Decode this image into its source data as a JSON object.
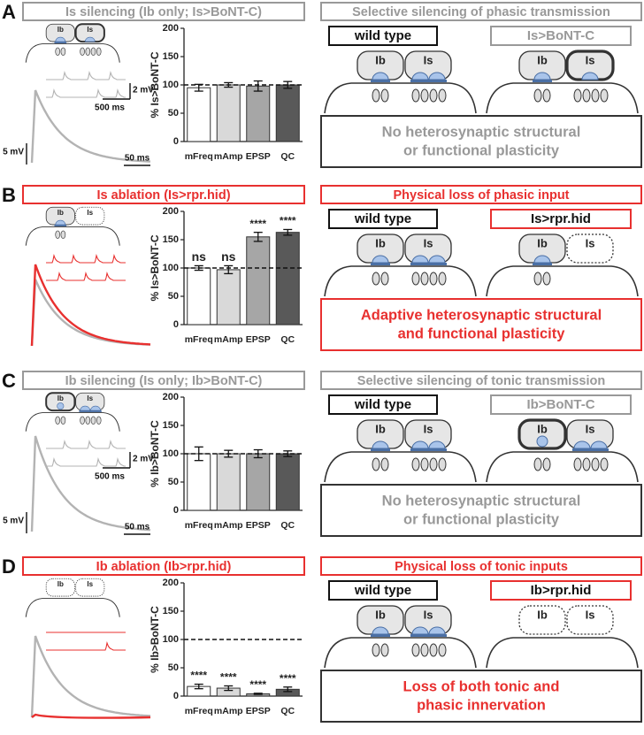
{
  "bouton_labels": [
    "Ib",
    "Is"
  ],
  "panels": [
    {
      "letter": "A",
      "title": "Is silencing (Ib only; Is>BoNT-C)",
      "accent": "#999999",
      "scale_labels": [
        "2 mV",
        "500 ms",
        "5 mV",
        "50 ms"
      ],
      "right_title": "Selective silencing of phasic transmission",
      "wild_type": "wild type",
      "mutant": "Is>BoNT-C",
      "conclusion": [
        "No heterosynaptic structural",
        "or functional plasticity"
      ],
      "conclusion_color": "#999999",
      "conclusion_border": "#333333"
    },
    {
      "letter": "B",
      "title": "Is ablation (Is>rpr.hid)",
      "accent": "#e8302f",
      "right_title": "Physical loss of phasic input",
      "wild_type": "wild type",
      "mutant": "Is>rpr.hid",
      "conclusion": [
        "Adaptive heterosynaptic structural",
        "and functional plasticity"
      ],
      "conclusion_color": "#e8302f",
      "conclusion_border": "#e8302f"
    },
    {
      "letter": "C",
      "title": "Ib silencing (Is only; Ib>BoNT-C)",
      "accent": "#999999",
      "scale_labels": [
        "2 mV",
        "500 ms",
        "5 mV",
        "50 ms"
      ],
      "right_title": "Selective silencing of tonic transmission",
      "wild_type": "wild type",
      "mutant": "Ib>BoNT-C",
      "conclusion": [
        "No heterosynaptic structural",
        "or functional plasticity"
      ],
      "conclusion_color": "#999999",
      "conclusion_border": "#333333"
    },
    {
      "letter": "D",
      "title": "Ib ablation (Ib>rpr.hid)",
      "accent": "#e8302f",
      "right_title": "Physical loss of tonic inputs",
      "wild_type": "wild type",
      "mutant": "Ib>rpr.hid",
      "conclusion": [
        "Loss of both tonic and",
        "phasic innervation"
      ],
      "conclusion_color": "#e8302f",
      "conclusion_border": "#333333"
    }
  ],
  "chart_data": [
    {
      "type": "bar",
      "ylabel": "% Is>BoNT-C",
      "categories": [
        "mFreq",
        "mAmp",
        "EPSP",
        "QC"
      ],
      "values": [
        95,
        100,
        98,
        100
      ],
      "errors": [
        6,
        4,
        9,
        6
      ],
      "colors": [
        "#ffffff",
        "#d9d9d9",
        "#a6a6a6",
        "#595959"
      ],
      "ylim": [
        0,
        200
      ],
      "yticks": [
        0,
        50,
        100,
        150,
        200
      ],
      "reference": 100
    },
    {
      "type": "bar",
      "ylabel": "% Is>BoNT-C",
      "categories": [
        "mFreq",
        "mAmp",
        "EPSP",
        "QC"
      ],
      "values": [
        100,
        97,
        155,
        163
      ],
      "errors": [
        4,
        7,
        8,
        5
      ],
      "annotations": [
        "ns",
        "ns",
        "****",
        "****"
      ],
      "colors": [
        "#ffffff",
        "#d9d9d9",
        "#a6a6a6",
        "#595959"
      ],
      "ylim": [
        0,
        200
      ],
      "yticks": [
        0,
        50,
        100,
        150,
        200
      ],
      "reference": 100
    },
    {
      "type": "bar",
      "ylabel": "% Ib>BoNT-C",
      "categories": [
        "mFreq",
        "mAmp",
        "EPSP",
        "QC"
      ],
      "values": [
        100,
        100,
        100,
        100
      ],
      "errors": [
        12,
        6,
        7,
        5
      ],
      "colors": [
        "#ffffff",
        "#d9d9d9",
        "#a6a6a6",
        "#595959"
      ],
      "ylim": [
        0,
        200
      ],
      "yticks": [
        0,
        50,
        100,
        150,
        200
      ],
      "reference": 100
    },
    {
      "type": "bar",
      "ylabel": "% Ib>BoNT-C",
      "categories": [
        "mFreq",
        "mAmp",
        "EPSP",
        "QC"
      ],
      "values": [
        17,
        14,
        4,
        12
      ],
      "errors": [
        4,
        4,
        1,
        4
      ],
      "annotations": [
        "****",
        "****",
        "****",
        "****"
      ],
      "colors": [
        "#ffffff",
        "#d9d9d9",
        "#a6a6a6",
        "#595959"
      ],
      "ylim": [
        0,
        200
      ],
      "yticks": [
        0,
        50,
        100,
        150,
        200
      ],
      "reference": 100
    }
  ]
}
